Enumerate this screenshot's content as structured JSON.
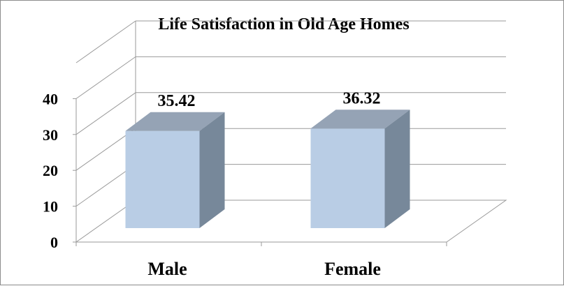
{
  "chart_data": {
    "type": "bar",
    "title": "Life Satisfaction in Old Age Homes",
    "categories": [
      "Male",
      "Female"
    ],
    "values": [
      35.42,
      36.32
    ],
    "data_labels": [
      "35.42",
      "36.32"
    ],
    "y_ticks": [
      "0",
      "10",
      "20",
      "30",
      "40"
    ],
    "ylim": [
      0,
      50
    ],
    "xlabel": "",
    "ylabel": "",
    "grid": true,
    "style": "3d-column",
    "colors": {
      "bar_front": "#b9cde5",
      "bar_top": "#95a3b5",
      "bar_side": "#77889a",
      "grid": "#9a9a9a",
      "text": "#000000"
    }
  }
}
